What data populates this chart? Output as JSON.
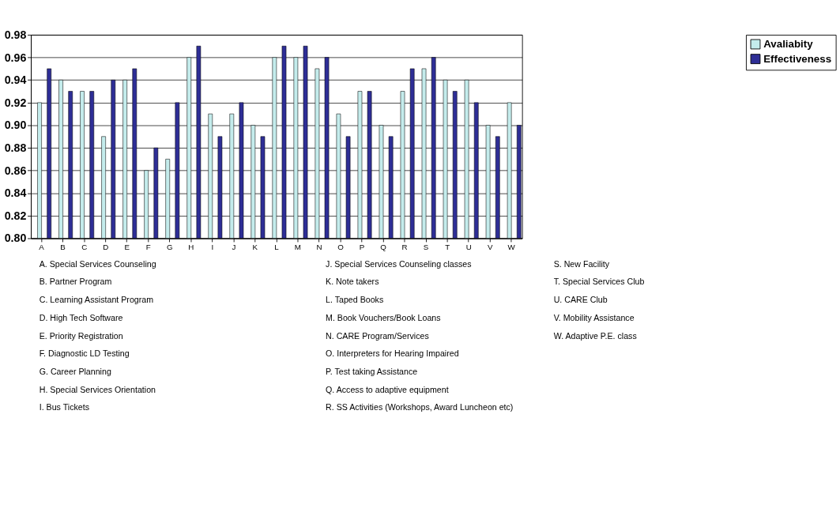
{
  "chart_data": {
    "type": "bar",
    "categories": [
      "A",
      "B",
      "C",
      "D",
      "E",
      "F",
      "G",
      "H",
      "I",
      "J",
      "K",
      "L",
      "M",
      "N",
      "O",
      "P",
      "Q",
      "R",
      "S",
      "T",
      "U",
      "V",
      "W"
    ],
    "series": [
      {
        "name": "Avaliabity",
        "color": "#c4ecec",
        "values": [
          0.92,
          0.94,
          0.93,
          0.89,
          0.94,
          0.86,
          0.87,
          0.96,
          0.91,
          0.91,
          0.9,
          0.96,
          0.96,
          0.95,
          0.91,
          0.93,
          0.9,
          0.93,
          0.95,
          0.94,
          0.94,
          0.9,
          0.92
        ]
      },
      {
        "name": "Effectiveness",
        "color": "#2e2e96",
        "values": [
          0.95,
          0.93,
          0.93,
          0.94,
          0.95,
          0.88,
          0.92,
          0.97,
          0.89,
          0.92,
          0.89,
          0.97,
          0.97,
          0.96,
          0.89,
          0.93,
          0.89,
          0.95,
          0.96,
          0.93,
          0.92,
          0.89,
          0.9
        ]
      }
    ],
    "ylim": [
      0.8,
      0.98
    ],
    "yticks": [
      {
        "value": 0.8,
        "label": "0.80"
      },
      {
        "value": 0.82,
        "label": "0.82"
      },
      {
        "value": 0.84,
        "label": "0.84"
      },
      {
        "value": 0.86,
        "label": "0.86"
      },
      {
        "value": 0.88,
        "label": "0.88"
      },
      {
        "value": 0.9,
        "label": "0.90"
      },
      {
        "value": 0.92,
        "label": "0.92"
      },
      {
        "value": 0.94,
        "label": "0.94"
      },
      {
        "value": 0.96,
        "label": "0.96"
      },
      {
        "value": 0.98,
        "label": "0.98"
      }
    ],
    "grid": "y",
    "legend": "right",
    "annotations": [
      "A.   Special Services Counseling",
      "B.   Partner Program",
      "C.   Learning Assistant Program",
      "D.   High Tech Software",
      "E.   Priority Registration",
      "F.   Diagnostic LD Testing",
      "G.   Career Planning",
      "H.   Special Services Orientation",
      "I.    Bus Tickets",
      "J.   Special Services Counseling classes",
      "K.   Note takers",
      "L.    Taped Books",
      "M.   Book Vouchers/Book Loans",
      "N. CARE Program/Services",
      "O.  Interpreters for Hearing Impaired",
      "P.  Test taking Assistance",
      "Q.  Access to adaptive equipment",
      "R.   SS Activities (Workshops, Award Luncheon etc)",
      "S.   New Facility",
      "T.   Special Services Club",
      "U.   CARE Club",
      "V.   Mobility Assistance",
      "W.  Adaptive P.E. class"
    ]
  }
}
